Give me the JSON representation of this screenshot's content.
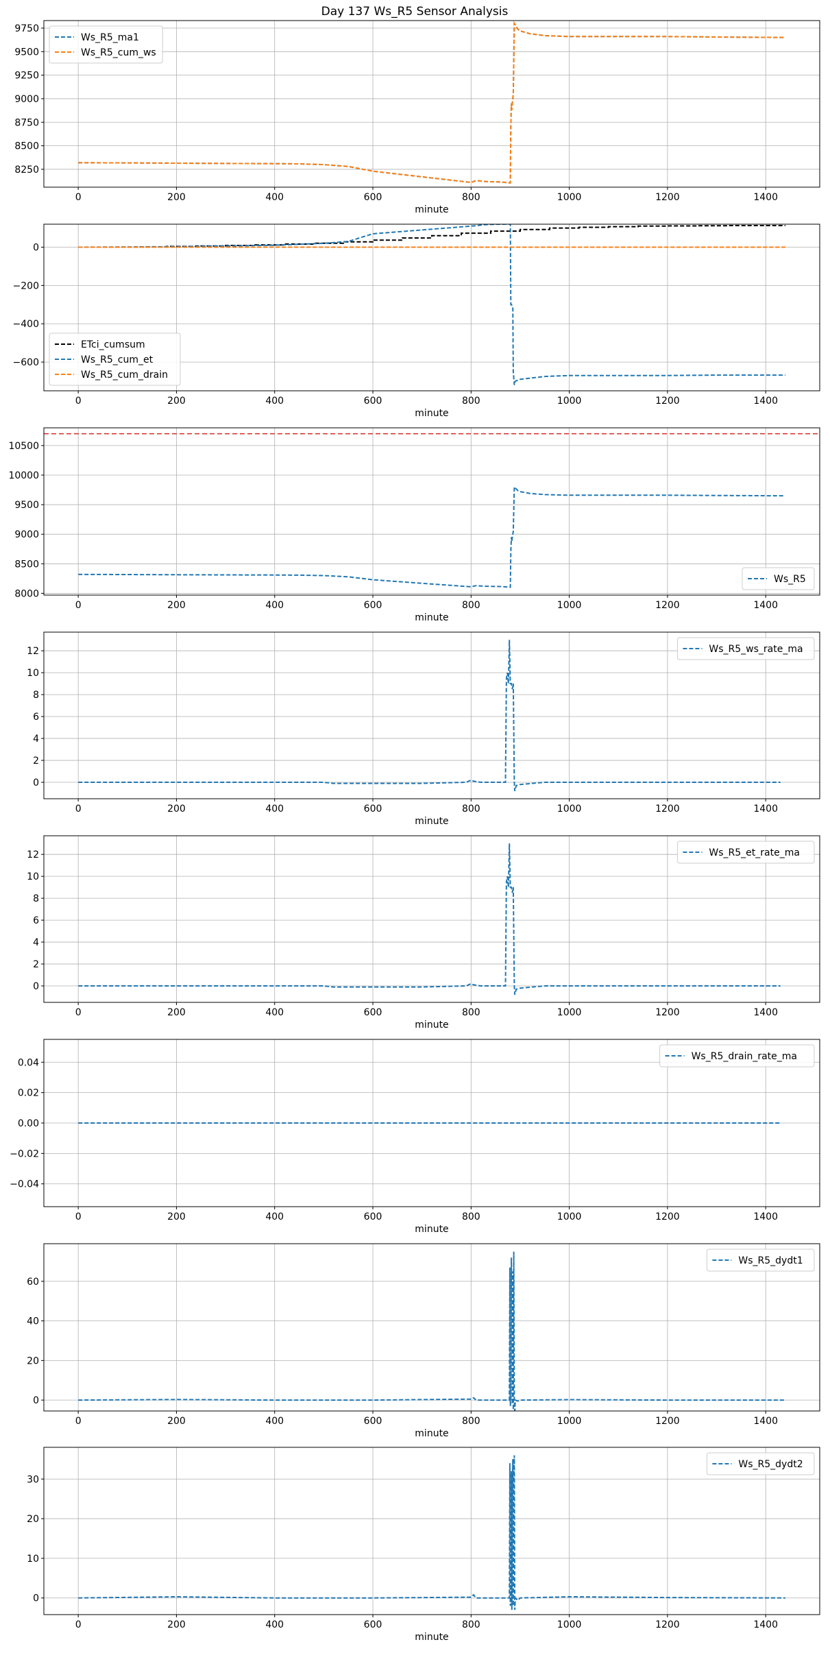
{
  "figure": {
    "title": "Day 137 Ws_R5 Sensor Analysis"
  },
  "colors": {
    "blue": "#1f77b4",
    "orange": "#ff7f0e",
    "black": "#000000",
    "red": "#d62728",
    "grid": "#b0b0b0"
  },
  "chart_data": [
    {
      "type": "line",
      "xlabel": "minute",
      "ylabel": "",
      "xlim": [
        -70,
        1510
      ],
      "ylim": [
        8060,
        9830
      ],
      "xticks": [
        0,
        200,
        400,
        600,
        800,
        1000,
        1200,
        1400
      ],
      "yticks": [
        8250,
        8500,
        8750,
        9000,
        9250,
        9500,
        9750
      ],
      "grid": true,
      "legend": {
        "position": "upper-left"
      },
      "series": [
        {
          "name": "Ws_R5_ma1",
          "color": "#1f77b4",
          "dashed": true,
          "x": [
            0,
            100,
            200,
            300,
            400,
            450,
            500,
            550,
            600,
            650,
            700,
            750,
            800,
            810,
            830,
            860,
            880,
            881,
            882,
            883,
            884,
            885,
            886,
            888,
            895,
            900,
            920,
            950,
            1000,
            1100,
            1200,
            1300,
            1440
          ],
          "y": [
            8320,
            8318,
            8315,
            8312,
            8310,
            8308,
            8300,
            8280,
            8230,
            8200,
            8170,
            8140,
            8110,
            8130,
            8120,
            8115,
            8105,
            8700,
            8950,
            8880,
            8950,
            9000,
            9050,
            9800,
            9740,
            9720,
            9690,
            9670,
            9660,
            9660,
            9660,
            9655,
            9650
          ]
        },
        {
          "name": "Ws_R5_cum_ws",
          "color": "#ff7f0e",
          "dashed": true,
          "x": [
            0,
            100,
            200,
            300,
            400,
            450,
            500,
            550,
            600,
            650,
            700,
            750,
            800,
            810,
            830,
            860,
            880,
            881,
            882,
            883,
            884,
            885,
            886,
            888,
            895,
            900,
            920,
            950,
            1000,
            1100,
            1200,
            1300,
            1440
          ],
          "y": [
            8320,
            8318,
            8315,
            8312,
            8310,
            8308,
            8300,
            8280,
            8230,
            8200,
            8170,
            8140,
            8110,
            8130,
            8120,
            8115,
            8105,
            8700,
            8950,
            8880,
            8950,
            9000,
            9050,
            9800,
            9740,
            9720,
            9690,
            9670,
            9660,
            9660,
            9660,
            9655,
            9650
          ]
        }
      ]
    },
    {
      "type": "line",
      "xlabel": "minute",
      "ylabel": "",
      "xlim": [
        -70,
        1510
      ],
      "ylim": [
        -750,
        120
      ],
      "xticks": [
        0,
        200,
        400,
        600,
        800,
        1000,
        1200,
        1400
      ],
      "yticks": [
        -600,
        -400,
        -200,
        0
      ],
      "grid": true,
      "legend": {
        "position": "lower-left"
      },
      "series": [
        {
          "name": "ETci_cumsum",
          "color": "#000000",
          "dashed": true,
          "step": true,
          "x": [
            0,
            120,
            180,
            240,
            300,
            360,
            420,
            480,
            540,
            600,
            660,
            720,
            780,
            840,
            900,
            960,
            1020,
            1080,
            1140,
            1200,
            1260,
            1320,
            1380,
            1440
          ],
          "y": [
            0,
            2,
            4,
            6,
            9,
            12,
            16,
            21,
            28,
            37,
            48,
            60,
            73,
            84,
            92,
            100,
            104,
            107,
            110,
            111,
            112,
            113,
            113,
            113
          ]
        },
        {
          "name": "Ws_R5_cum_et",
          "color": "#1f77b4",
          "dashed": true,
          "x": [
            0,
            200,
            400,
            500,
            550,
            600,
            650,
            700,
            750,
            800,
            810,
            830,
            860,
            880,
            881,
            882,
            885,
            886,
            888,
            890,
            900,
            950,
            1000,
            1100,
            1200,
            1300,
            1440
          ],
          "y": [
            0,
            3,
            10,
            20,
            30,
            70,
            80,
            90,
            100,
            110,
            112,
            118,
            120,
            121,
            -300,
            -300,
            -310,
            -650,
            -720,
            -700,
            -690,
            -675,
            -670,
            -670,
            -670,
            -668,
            -668
          ]
        },
        {
          "name": "Ws_R5_cum_drain",
          "color": "#ff7f0e",
          "dashed": true,
          "x": [
            0,
            1440
          ],
          "y": [
            0,
            0
          ]
        }
      ]
    },
    {
      "type": "line",
      "xlabel": "minute",
      "ylabel": "",
      "xlim": [
        -70,
        1510
      ],
      "ylim": [
        7970,
        10800
      ],
      "xticks": [
        0,
        200,
        400,
        600,
        800,
        1000,
        1200,
        1400
      ],
      "yticks": [
        8000,
        8500,
        9000,
        9500,
        10000,
        10500
      ],
      "grid": true,
      "legend": {
        "position": "lower-right"
      },
      "hline": {
        "y": 10700,
        "color": "#d62728"
      },
      "series": [
        {
          "name": "Ws_R5",
          "color": "#1f77b4",
          "dashed": true,
          "x": [
            0,
            100,
            200,
            300,
            400,
            450,
            500,
            550,
            600,
            650,
            700,
            750,
            800,
            810,
            830,
            860,
            880,
            881,
            882,
            883,
            884,
            885,
            886,
            888,
            895,
            900,
            920,
            950,
            1000,
            1100,
            1200,
            1300,
            1440
          ],
          "y": [
            8320,
            8318,
            8315,
            8312,
            8310,
            8308,
            8300,
            8280,
            8230,
            8200,
            8170,
            8140,
            8110,
            8130,
            8120,
            8115,
            8105,
            8700,
            8950,
            8880,
            8950,
            9000,
            9050,
            9800,
            9740,
            9720,
            9690,
            9670,
            9660,
            9660,
            9660,
            9655,
            9650
          ]
        }
      ]
    },
    {
      "type": "line",
      "xlabel": "minute",
      "ylabel": "",
      "xlim": [
        -70,
        1510
      ],
      "ylim": [
        -1.5,
        13.7
      ],
      "xticks": [
        0,
        200,
        400,
        600,
        800,
        1000,
        1200,
        1400
      ],
      "yticks": [
        0,
        2,
        4,
        6,
        8,
        10,
        12
      ],
      "grid": true,
      "legend": {
        "position": "upper-right"
      },
      "series": [
        {
          "name": "Ws_R5_ws_rate_ma",
          "color": "#1f77b4",
          "dashed": true,
          "x": [
            0,
            300,
            500,
            520,
            600,
            700,
            790,
            800,
            805,
            820,
            860,
            870,
            872,
            874,
            876,
            878,
            880,
            882,
            884,
            886,
            888,
            889,
            892,
            900,
            950,
            1000,
            1100,
            1200,
            1300,
            1430
          ],
          "y": [
            0,
            0,
            0,
            -0.1,
            -0.1,
            -0.1,
            0,
            0.2,
            0.1,
            0,
            0,
            0,
            9.5,
            10,
            9,
            13,
            9,
            9,
            8.5,
            9,
            0,
            -0.8,
            -0.3,
            -0.2,
            0,
            0,
            0,
            0,
            0,
            0
          ]
        }
      ]
    },
    {
      "type": "line",
      "xlabel": "minute",
      "ylabel": "",
      "xlim": [
        -70,
        1510
      ],
      "ylim": [
        -1.5,
        13.7
      ],
      "xticks": [
        0,
        200,
        400,
        600,
        800,
        1000,
        1200,
        1400
      ],
      "yticks": [
        0,
        2,
        4,
        6,
        8,
        10,
        12
      ],
      "grid": true,
      "legend": {
        "position": "upper-right"
      },
      "series": [
        {
          "name": "Ws_R5_et_rate_ma",
          "color": "#1f77b4",
          "dashed": true,
          "x": [
            0,
            300,
            500,
            520,
            600,
            700,
            790,
            800,
            805,
            820,
            860,
            870,
            872,
            874,
            876,
            878,
            880,
            882,
            884,
            886,
            888,
            889,
            892,
            900,
            950,
            1000,
            1100,
            1200,
            1300,
            1430
          ],
          "y": [
            0,
            0,
            0,
            -0.1,
            -0.1,
            -0.1,
            0,
            0.2,
            0.1,
            0,
            0,
            0,
            9.5,
            10,
            9,
            13,
            9,
            9,
            8.5,
            9,
            0,
            -0.8,
            -0.3,
            -0.2,
            0,
            0,
            0,
            0,
            0,
            0
          ]
        }
      ]
    },
    {
      "type": "line",
      "xlabel": "minute",
      "ylabel": "",
      "xlim": [
        -70,
        1510
      ],
      "ylim": [
        -0.055,
        0.055
      ],
      "xticks": [
        0,
        200,
        400,
        600,
        800,
        1000,
        1200,
        1400
      ],
      "yticks": [
        -0.04,
        -0.02,
        0.0,
        0.02,
        0.04
      ],
      "ytick_labels": [
        "−0.04",
        "−0.02",
        "0.00",
        "0.02",
        "0.04"
      ],
      "grid": true,
      "legend": {
        "position": "upper-right"
      },
      "series": [
        {
          "name": "Ws_R5_drain_rate_ma",
          "color": "#1f77b4",
          "dashed": true,
          "x": [
            0,
            1430
          ],
          "y": [
            0,
            0
          ]
        }
      ]
    },
    {
      "type": "line",
      "xlabel": "minute",
      "ylabel": "",
      "xlim": [
        -70,
        1510
      ],
      "ylim": [
        -5.5,
        79
      ],
      "xticks": [
        0,
        200,
        400,
        600,
        800,
        1000,
        1200,
        1400
      ],
      "yticks": [
        0,
        20,
        40,
        60
      ],
      "grid": true,
      "legend": {
        "position": "upper-right"
      },
      "series": [
        {
          "name": "Ws_R5_dydt1",
          "color": "#1f77b4",
          "dashed": true,
          "x": [
            0,
            200,
            400,
            600,
            800,
            805,
            810,
            860,
            878,
            879,
            880,
            881,
            882,
            884,
            885,
            886,
            887,
            888,
            889,
            890,
            895,
            900,
            1000,
            1200,
            1440
          ],
          "y": [
            0,
            0.3,
            0,
            0,
            0.5,
            1.2,
            0,
            0,
            0,
            67,
            -3,
            0,
            72,
            -2,
            65,
            -5,
            75,
            0,
            -7,
            0,
            -0.5,
            0,
            0.2,
            0,
            0
          ]
        }
      ]
    },
    {
      "type": "line",
      "xlabel": "minute",
      "ylabel": "",
      "xlim": [
        -70,
        1510
      ],
      "ylim": [
        -4.2,
        38
      ],
      "xticks": [
        0,
        200,
        400,
        600,
        800,
        1000,
        1200,
        1400
      ],
      "yticks": [
        0,
        10,
        20,
        30
      ],
      "grid": true,
      "legend": {
        "position": "upper-right"
      },
      "series": [
        {
          "name": "Ws_R5_dydt2",
          "color": "#1f77b4",
          "dashed": true,
          "x": [
            0,
            200,
            400,
            600,
            800,
            805,
            810,
            860,
            878,
            879,
            880,
            881,
            882,
            883,
            884,
            885,
            886,
            887,
            888,
            889,
            890,
            895,
            900,
            1000,
            1200,
            1440
          ],
          "y": [
            0,
            0.3,
            0,
            0,
            0.2,
            0.8,
            0,
            0,
            0,
            34,
            -2,
            0,
            32,
            -3,
            20,
            35,
            -2,
            30,
            36,
            -3,
            0,
            -0.6,
            0,
            0.3,
            0.1,
            0
          ]
        }
      ]
    }
  ]
}
